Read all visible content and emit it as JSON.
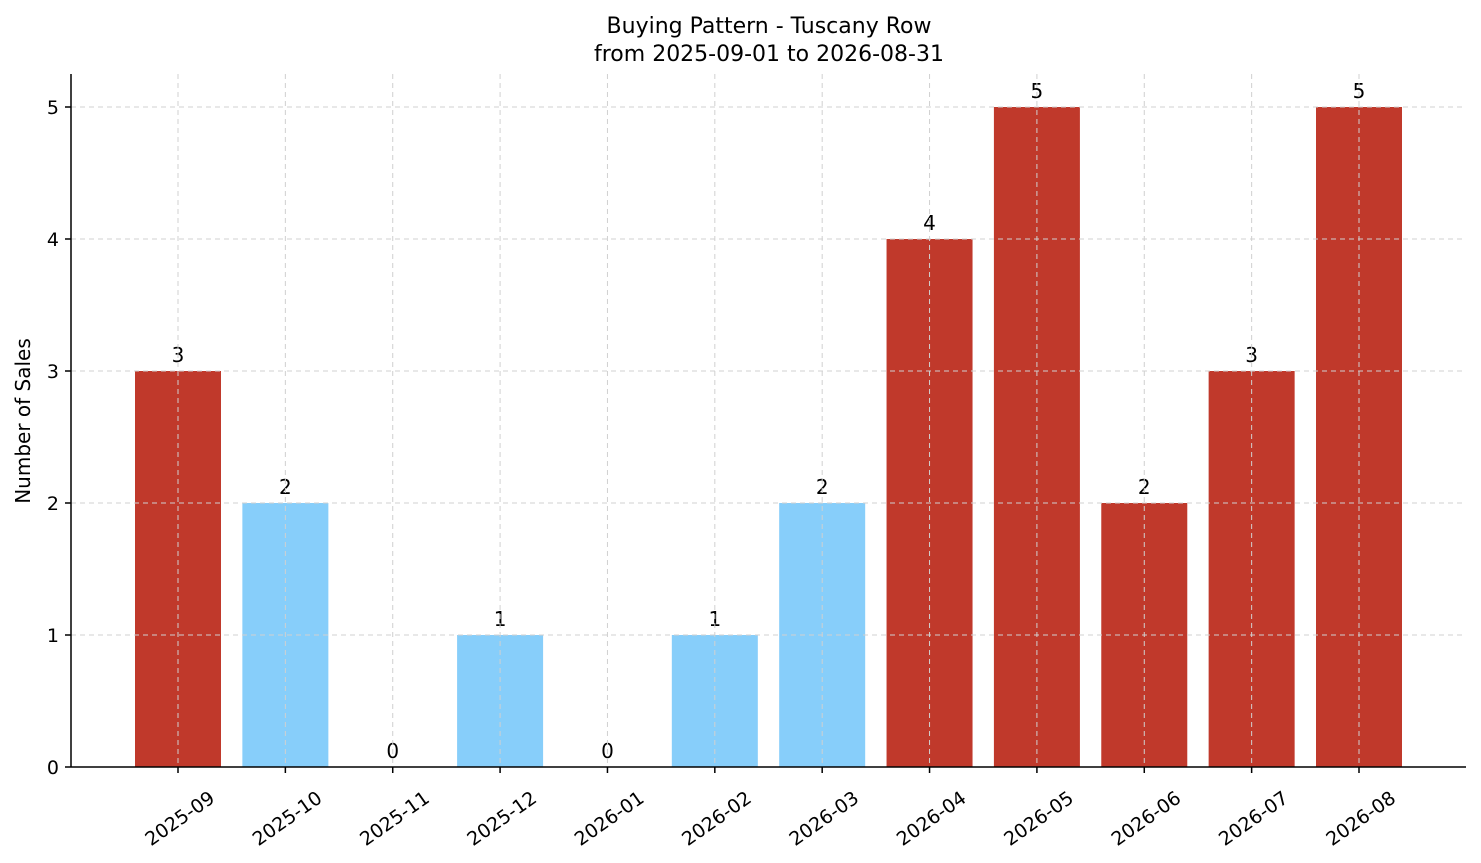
{
  "chart_data": {
    "type": "bar",
    "title": "Buying Pattern - Tuscany Row",
    "subtitle": "from 2025-09-01 to 2026-08-31",
    "xlabel": "",
    "ylabel": "Number of Sales",
    "categories": [
      "2025-09",
      "2025-10",
      "2025-11",
      "2025-12",
      "2026-01",
      "2026-02",
      "2026-03",
      "2026-04",
      "2026-05",
      "2026-06",
      "2026-07",
      "2026-08"
    ],
    "values": [
      3,
      2,
      0,
      1,
      0,
      1,
      2,
      4,
      5,
      2,
      3,
      5
    ],
    "bar_colors": [
      "#c0392b",
      "#87cefa",
      "#87cefa",
      "#87cefa",
      "#87cefa",
      "#87cefa",
      "#87cefa",
      "#c0392b",
      "#c0392b",
      "#c0392b",
      "#c0392b",
      "#c0392b"
    ],
    "ylim": [
      0,
      5.25
    ],
    "yticks": [
      0,
      1,
      2,
      3,
      4,
      5
    ],
    "grid": true,
    "legend": "none"
  }
}
